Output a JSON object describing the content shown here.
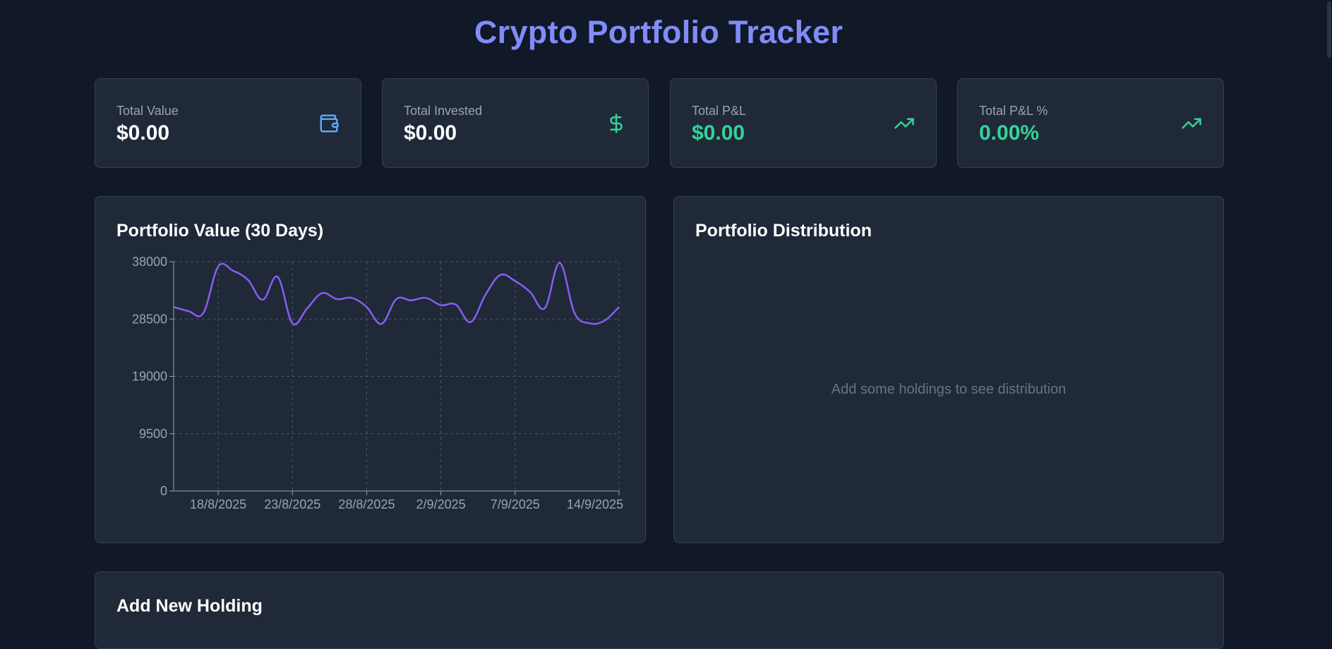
{
  "app": {
    "title": "Crypto Portfolio Tracker"
  },
  "stats": [
    {
      "label": "Total Value",
      "value": "$0.00",
      "icon": "wallet-icon",
      "value_color": "#ffffff"
    },
    {
      "label": "Total Invested",
      "value": "$0.00",
      "icon": "dollar-icon",
      "value_color": "#ffffff"
    },
    {
      "label": "Total P&L",
      "value": "$0.00",
      "icon": "trending-up-icon",
      "value_color": "#34d399"
    },
    {
      "label": "Total P&L %",
      "value": "0.00%",
      "icon": "trending-up-icon",
      "value_color": "#34d399"
    }
  ],
  "value_chart": {
    "title": "Portfolio Value (30 Days)"
  },
  "distribution": {
    "title": "Portfolio Distribution",
    "empty_message": "Add some holdings to see distribution"
  },
  "add_holding": {
    "title": "Add New Holding"
  },
  "colors": {
    "accent": "#818cf8",
    "line": "#8b5cf6",
    "positive": "#34d399",
    "wallet": "#60a5fa"
  },
  "chart_data": {
    "type": "line",
    "title": "Portfolio Value (30 Days)",
    "xlabel": "",
    "ylabel": "",
    "ylim": [
      0,
      38000
    ],
    "yticks": [
      0,
      9500,
      19000,
      28500,
      38000
    ],
    "xtick_labels": [
      "18/8/2025",
      "23/8/2025",
      "28/8/2025",
      "2/9/2025",
      "7/9/2025",
      "14/9/2025"
    ],
    "x": [
      "15/8/2025",
      "16/8/2025",
      "17/8/2025",
      "18/8/2025",
      "19/8/2025",
      "20/8/2025",
      "21/8/2025",
      "22/8/2025",
      "23/8/2025",
      "24/8/2025",
      "25/8/2025",
      "26/8/2025",
      "27/8/2025",
      "28/8/2025",
      "29/8/2025",
      "30/8/2025",
      "31/8/2025",
      "1/9/2025",
      "2/9/2025",
      "3/9/2025",
      "4/9/2025",
      "5/9/2025",
      "6/9/2025",
      "7/9/2025",
      "8/9/2025",
      "9/9/2025",
      "10/9/2025",
      "11/9/2025",
      "12/9/2025",
      "13/9/2025",
      "14/9/2025"
    ],
    "grid": true,
    "series": [
      {
        "values": [
          30500,
          29800,
          29500,
          37200,
          36500,
          35000,
          31700,
          35500,
          27800,
          30300,
          32800,
          31800,
          32000,
          30500,
          27700,
          31800,
          31600,
          32000,
          30800,
          30900,
          28000,
          32500,
          35800,
          34800,
          33000,
          30300,
          37800,
          29500,
          27800,
          28200,
          30500
        ],
        "color": "#8b5cf6"
      }
    ]
  }
}
